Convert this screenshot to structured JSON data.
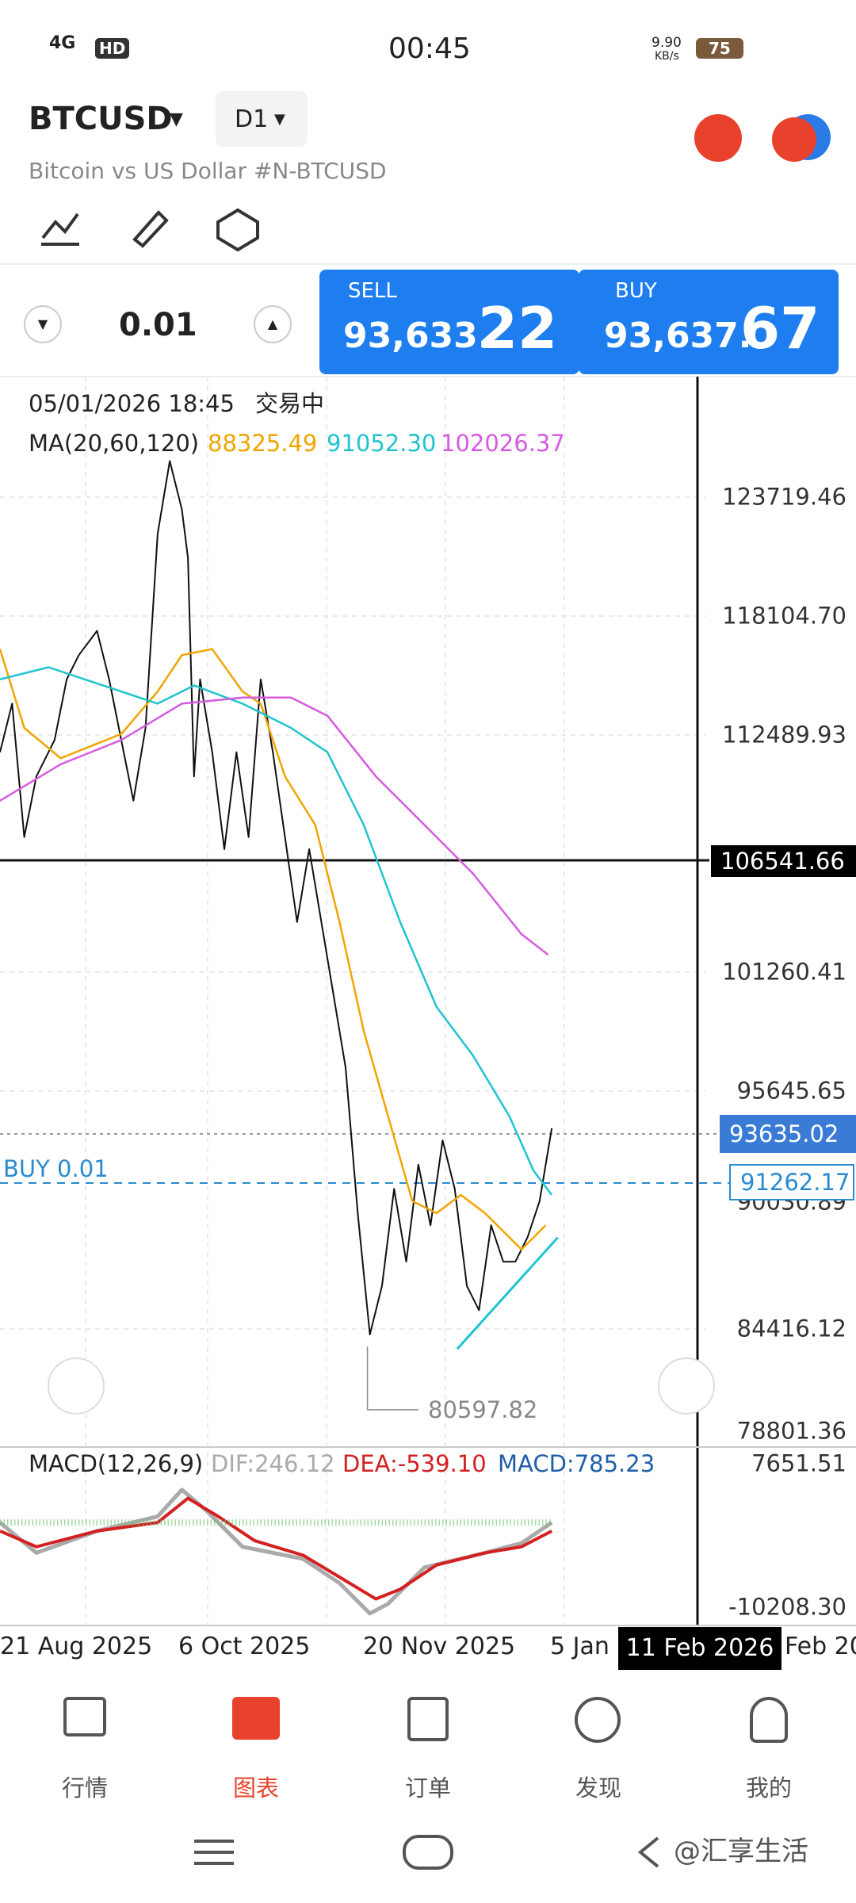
{
  "status_bar": {
    "network": "4G",
    "hd": "HD",
    "time": "00:45",
    "speed": "9.90",
    "speed_unit": "KB/s",
    "battery": "75"
  },
  "header": {
    "symbol": "BTCUSD",
    "timeframe": "D1",
    "description": "Bitcoin vs US Dollar #N-BTCUSD"
  },
  "trade": {
    "volume": "0.01",
    "sell": {
      "label": "SELL",
      "price_main": "93,633.",
      "price_big": "22"
    },
    "buy": {
      "label": "BUY",
      "price_main": "93,637.",
      "price_big": "67"
    }
  },
  "chart": {
    "datetime": "05/01/2026 18:45",
    "status": "交易中",
    "ma_label": "MA(20,60,120)",
    "ma_values": [
      "88325.49",
      "91052.30",
      "102026.37"
    ],
    "price_labels": [
      "123719.46",
      "118104.70",
      "112489.93",
      "101260.41",
      "95645.65",
      "90030.89",
      "84416.12",
      "78801.36"
    ],
    "crosshair_price": "106541.66",
    "bid_price": "93635.02",
    "position_price": "91262.17",
    "position_label": "BUY 0.01",
    "low_label": "80597.82",
    "macd": {
      "label": "MACD(12,26,9)",
      "dif": "DIF:246.12",
      "dea": "DEA:-539.10",
      "macd": "MACD:785.23",
      "axis": [
        "7651.51",
        "-10208.30"
      ]
    },
    "dates": [
      "21 Aug 2025",
      "6 Oct 2025",
      "20 Nov 2025",
      "5 Jan",
      "Feb 20"
    ],
    "crosshair_date": "11 Feb 2026"
  },
  "nav": [
    "行情",
    "图表",
    "订单",
    "发现",
    "我的"
  ],
  "watermark": "@汇享生活"
}
